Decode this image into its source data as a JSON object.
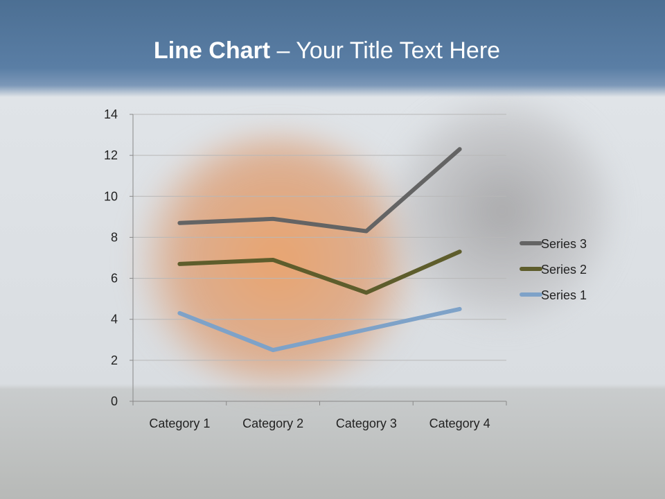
{
  "slide": {
    "title_bold": "Line Chart",
    "title_rest": " – Your Title Text Here"
  },
  "chart_data": {
    "type": "line",
    "categories": [
      "Category 1",
      "Category 2",
      "Category 3",
      "Category 4"
    ],
    "ylim": [
      0,
      14
    ],
    "yticks": [
      "0",
      "2",
      "4",
      "6",
      "8",
      "10",
      "12",
      "14"
    ],
    "grid": true,
    "legend": "right",
    "series": [
      {
        "name": "Series 1",
        "values": [
          4.3,
          2.5,
          3.5,
          4.5
        ],
        "color": "#7ea2c8"
      },
      {
        "name": "Series 2",
        "values": [
          6.7,
          6.9,
          5.3,
          7.3
        ],
        "color": "#5e5d2c"
      },
      {
        "name": "Series 3",
        "values": [
          8.7,
          8.9,
          8.3,
          12.3
        ],
        "color": "#646464"
      }
    ]
  }
}
